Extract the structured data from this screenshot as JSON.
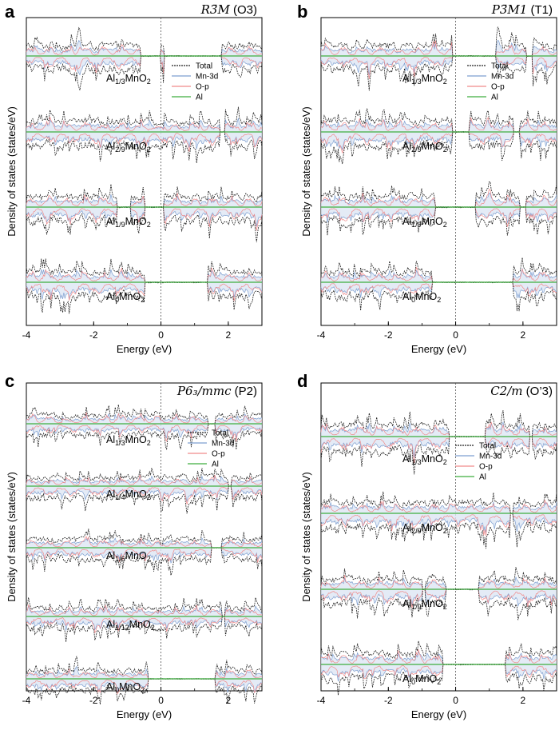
{
  "chart_data": [
    {
      "panel": "a",
      "type": "line",
      "title": {
        "italic_part": "R3̄M",
        "plain_part": " (O3)"
      },
      "xlabel": "Energy (eV)",
      "ylabel": "Density of states (states/eV)",
      "xlim": [
        -4,
        3
      ],
      "xticks": [
        "-4",
        "-2",
        "0",
        "2"
      ],
      "fermi_level": 0,
      "legend": [
        "Total",
        "Mn-3d",
        "O-p",
        "Al"
      ],
      "compositions": [
        {
          "base": "Al",
          "sub": "1/3",
          "rest": "MnO",
          "sub2": "2",
          "gap": [
            -0.6,
            0.0
          ],
          "gap2": [
            0.1,
            1.8
          ]
        },
        {
          "base": "Al",
          "sub": "2/9",
          "rest": "MnO",
          "sub2": "2",
          "gap": [
            1.75,
            1.9
          ],
          "gap2": [
            1.9,
            1.9
          ]
        },
        {
          "base": "Al",
          "sub": "1/9",
          "rest": "MnO",
          "sub2": "2",
          "gap": [
            -1.3,
            -0.9
          ],
          "gap2": [
            -0.5,
            0.1
          ]
        },
        {
          "base": "Al",
          "sub": "0",
          "rest": "MnO",
          "sub2": "2",
          "gap": [
            -0.5,
            1.4
          ],
          "gap2": [
            1.4,
            1.4
          ]
        }
      ]
    },
    {
      "panel": "b",
      "type": "line",
      "title": {
        "italic_part": "P3̄M1",
        "plain_part": " (T1)"
      },
      "xlabel": "Energy (eV)",
      "ylabel": "Density of states (states/eV)",
      "xlim": [
        -4,
        3
      ],
      "xticks": [
        "-4",
        "-2",
        "0",
        "2"
      ],
      "fermi_level": 0,
      "legend": [
        "Total",
        "Mn-3d",
        "O-p",
        "Al"
      ],
      "compositions": [
        {
          "base": "Al",
          "sub": "1/3",
          "rest": "MnO",
          "sub2": "2",
          "gap": [
            -0.1,
            1.2
          ],
          "gap2": [
            2.1,
            2.3
          ]
        },
        {
          "base": "Al",
          "sub": "2/9",
          "rest": "MnO",
          "sub2": "2",
          "gap": [
            -0.1,
            0.4
          ],
          "gap2": [
            1.7,
            1.9
          ]
        },
        {
          "base": "Al",
          "sub": "1/9",
          "rest": "MnO",
          "sub2": "2",
          "gap": [
            -0.6,
            0.6
          ],
          "gap2": [
            1.9,
            2.1
          ]
        },
        {
          "base": "Al",
          "sub": "0",
          "rest": "MnO",
          "sub2": "2",
          "gap": [
            -0.7,
            1.7
          ],
          "gap2": [
            1.7,
            1.7
          ]
        }
      ]
    },
    {
      "panel": "c",
      "type": "line",
      "title": {
        "italic_part": "P6₃/mmc",
        "plain_part": " (P2)"
      },
      "xlabel": "Energy (eV)",
      "ylabel": "Density of states (states/eV)",
      "xlim": [
        -4,
        3
      ],
      "xticks": [
        "-4",
        "-2",
        "0",
        "2"
      ],
      "fermi_level": 0,
      "legend": [
        "Total",
        "Mn-3d",
        "O-p",
        "Al"
      ],
      "compositions": [
        {
          "base": "Al",
          "sub": "1/3",
          "rest": "MnO",
          "sub2": "2",
          "gap": [
            1.4,
            1.6
          ],
          "gap2": [
            1.6,
            1.6
          ]
        },
        {
          "base": "Al",
          "sub": "1/4",
          "rest": "MnO",
          "sub2": "2",
          "gap": [
            2.0,
            2.1
          ],
          "gap2": [
            2.1,
            2.1
          ]
        },
        {
          "base": "Al",
          "sub": "1/6",
          "rest": "MnO",
          "sub2": "2",
          "gap": [
            1.5,
            1.8
          ],
          "gap2": [
            1.8,
            1.8
          ]
        },
        {
          "base": "Al",
          "sub": "1/12",
          "rest": "MnO",
          "sub2": "2",
          "gap": [
            1.8,
            1.9
          ],
          "gap2": [
            1.9,
            1.9
          ]
        },
        {
          "base": "Al",
          "sub": "0",
          "rest": "MnO",
          "sub2": "2",
          "gap": [
            -0.4,
            1.6
          ],
          "gap2": [
            1.6,
            1.6
          ]
        }
      ]
    },
    {
      "panel": "d",
      "type": "line",
      "title": {
        "italic_part": "C2/m",
        "plain_part": " (O’3)"
      },
      "xlabel": "Energy (eV)",
      "ylabel": "Density of states (states/eV)",
      "xlim": [
        -4,
        3
      ],
      "xticks": [
        "-4",
        "-2",
        "0",
        "2"
      ],
      "fermi_level": 0,
      "legend": [
        "Total",
        "Mn-3d",
        "O-p",
        "Al"
      ],
      "compositions": [
        {
          "base": "Al",
          "sub": "1/3",
          "rest": "MnO",
          "sub2": "2",
          "gap": [
            -0.2,
            0.9
          ],
          "gap2": [
            2.2,
            2.3
          ]
        },
        {
          "base": "Al",
          "sub": "2/9",
          "rest": "MnO",
          "sub2": "2",
          "gap": [
            1.6,
            1.7
          ],
          "gap2": [
            1.7,
            1.7
          ]
        },
        {
          "base": "Al",
          "sub": "1/9",
          "rest": "MnO",
          "sub2": "2",
          "gap": [
            -1.0,
            -0.9
          ],
          "gap2": [
            -0.3,
            0.7
          ]
        },
        {
          "base": "Al",
          "sub": "0",
          "rest": "MnO",
          "sub2": "2",
          "gap": [
            -0.4,
            1.5
          ],
          "gap2": [
            1.5,
            1.5
          ]
        }
      ]
    }
  ],
  "colors": {
    "total": "#222222",
    "mn3d": "#7e9fd0",
    "op": "#f08a8a",
    "al": "#3fae3f",
    "fill": "#dde6f4"
  }
}
